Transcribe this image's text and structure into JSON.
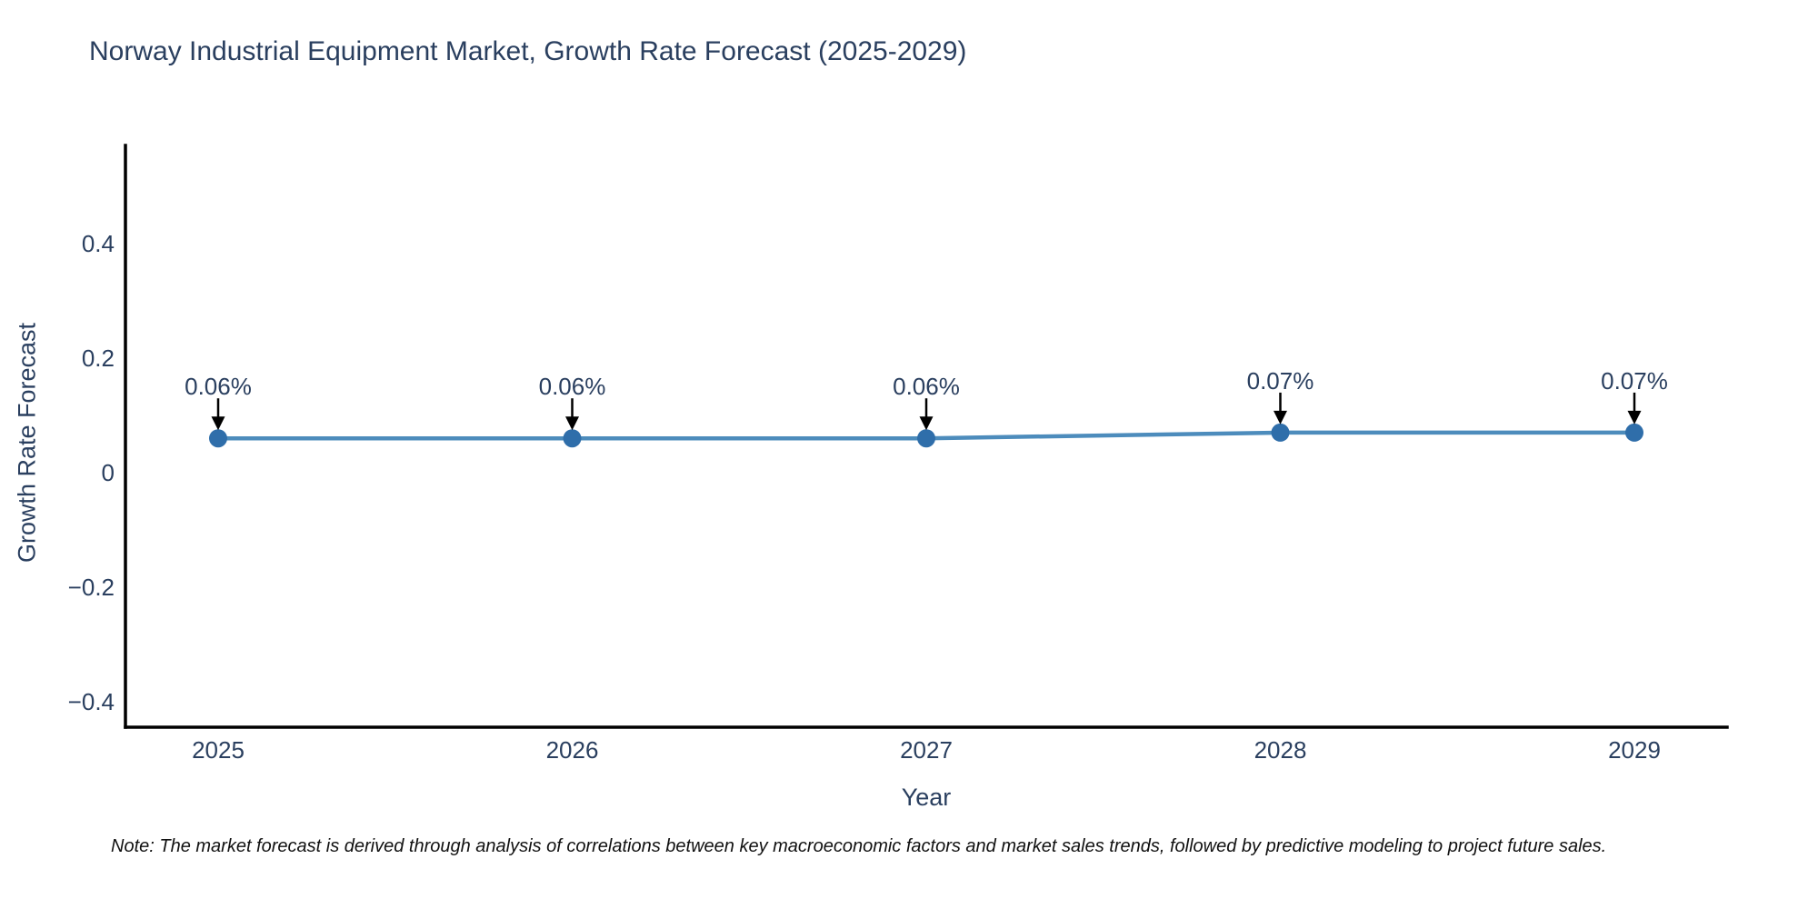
{
  "note": "Note: The market forecast is derived through analysis of correlations between key macroeconomic factors and market sales trends, followed by predictive modeling to project future sales.",
  "chart_data": {
    "type": "line",
    "title": "Norway Industrial Equipment Market, Growth Rate Forecast (2025-2029)",
    "xlabel": "Year",
    "ylabel": "Growth Rate Forecast",
    "categories": [
      "2025",
      "2026",
      "2027",
      "2028",
      "2029"
    ],
    "series": [
      {
        "name": "Growth Rate Forecast",
        "values": [
          0.06,
          0.06,
          0.06,
          0.07,
          0.07
        ]
      }
    ],
    "point_labels": [
      "0.06%",
      "0.06%",
      "0.06%",
      "0.07%",
      "0.07%"
    ],
    "y_ticks": [
      {
        "value": 0.4,
        "label": "0.4"
      },
      {
        "value": 0.2,
        "label": "0.2"
      },
      {
        "value": 0,
        "label": "0"
      },
      {
        "value": -0.2,
        "label": "−0.2"
      },
      {
        "value": -0.4,
        "label": "−0.4"
      }
    ],
    "ylim": [
      -0.445,
      0.572
    ],
    "grid": false,
    "legend": "none",
    "annotation_style": "down-arrow",
    "colors": {
      "line": "#4d8cbc",
      "marker": "#2f6eaa",
      "axis": "#000000",
      "arrow": "#000000",
      "text": "#2a3f5f",
      "note_text": "#111111",
      "background": "#ffffff"
    }
  }
}
